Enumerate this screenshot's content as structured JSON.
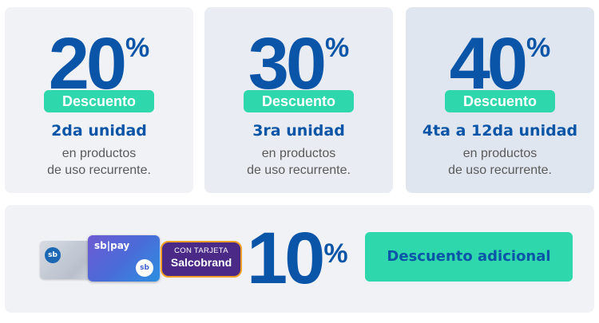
{
  "offers": [
    {
      "value": "20",
      "percent": "%",
      "badge": "Descuento",
      "unit": "2da unidad",
      "desc_line1": "en productos",
      "desc_line2": "de uso recurrente."
    },
    {
      "value": "30",
      "percent": "%",
      "badge": "Descuento",
      "unit": "3ra unidad",
      "desc_line1": "en productos",
      "desc_line2": "de uso recurrente."
    },
    {
      "value": "40",
      "percent": "%",
      "badge": "Descuento",
      "unit": "4ta a 12da unidad",
      "desc_line1": "en productos",
      "desc_line2": "de uso recurrente."
    }
  ],
  "extra": {
    "card1_logo": "sb",
    "card2_brand": "sb|pay",
    "card2_logo": "sb",
    "tarjeta_line1": "CON TARJETA",
    "tarjeta_line2": "Salcobrand",
    "value": "10",
    "percent": "%",
    "label": "Descuento adicional"
  },
  "colors": {
    "blue": "#0a55a7",
    "mint": "#2fd7ad",
    "card_bg": "#f1f2f6"
  }
}
